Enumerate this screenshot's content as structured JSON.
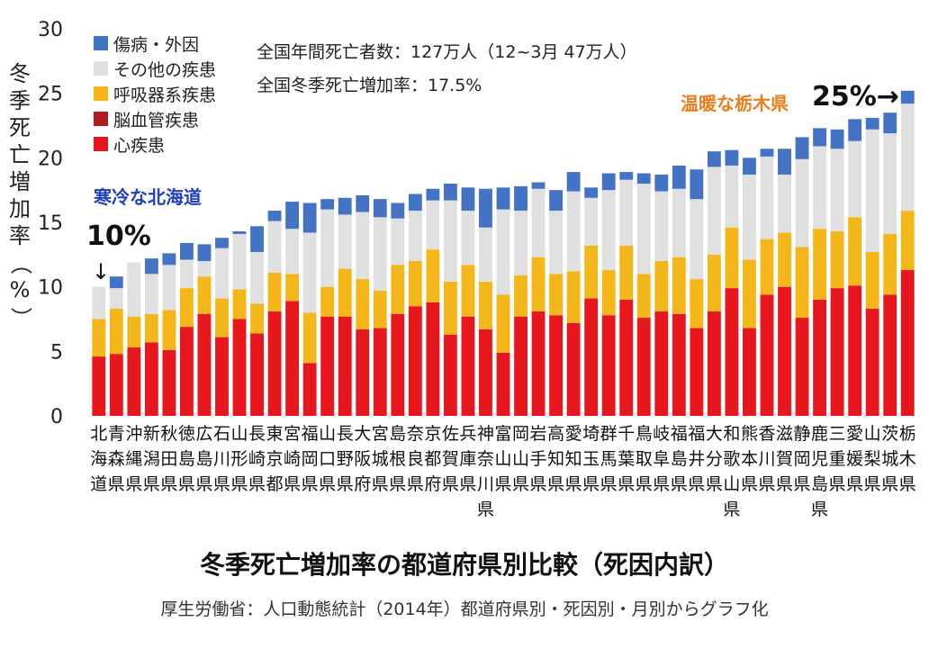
{
  "chart_data": {
    "type": "bar",
    "stacked": true,
    "title": "冬季死亡増加率の都道府県別比較（死因内訳）",
    "source": "厚生労働省：人口動態統計（2014年）都道府県別・死因別・月別からグラフ化",
    "ylabel": "冬季死亡増加率（%）",
    "ylim": [
      0,
      30
    ],
    "yticks": [
      "0",
      "5",
      "10",
      "15",
      "20",
      "25",
      "30"
    ],
    "grid": false,
    "legend_position": "top-left",
    "categories": [
      "北海道",
      "青森県",
      "沖縄県",
      "新潟県",
      "秋田県",
      "徳島県",
      "広島県",
      "石川県",
      "山形県",
      "長崎県",
      "東京都",
      "宮崎県",
      "福岡県",
      "山口県",
      "長野県",
      "大阪府",
      "宮城県",
      "島根県",
      "奈良県",
      "京都府",
      "佐賀県",
      "兵庫県",
      "神奈川県",
      "富山県",
      "岡山県",
      "岩手県",
      "高知県",
      "愛知県",
      "埼玉県",
      "群馬県",
      "千葉県",
      "鳥取県",
      "岐阜県",
      "福島県",
      "福井県",
      "大分県",
      "和歌山県",
      "熊本県",
      "香川県",
      "滋賀県",
      "静岡県",
      "鹿児島県",
      "三重県",
      "愛媛県",
      "山梨県",
      "茨城県",
      "栃木県"
    ],
    "series": [
      {
        "name": "心疾患",
        "color": "#e8171d",
        "values": [
          4.6,
          4.8,
          5.3,
          5.7,
          5.1,
          6.9,
          7.9,
          6.1,
          7.5,
          6.4,
          8.1,
          8.9,
          4.1,
          7.7,
          7.7,
          6.7,
          6.8,
          7.9,
          8.5,
          8.8,
          6.3,
          7.7,
          6.7,
          4.9,
          7.7,
          8.1,
          7.8,
          7.2,
          9.1,
          7.8,
          9.0,
          7.6,
          8.1,
          7.9,
          6.8,
          8.1,
          9.9,
          6.8,
          9.4,
          10.0,
          7.6,
          9.0,
          9.9,
          10.1,
          8.3,
          9.4,
          11.3
        ]
      },
      {
        "name": "脳血管疾患",
        "color": "#b01e23",
        "values": [
          0,
          0,
          0,
          0,
          0,
          0,
          0,
          0,
          0,
          0,
          0,
          0,
          0,
          0,
          0,
          0,
          0,
          0,
          0,
          0,
          0,
          0,
          0,
          0,
          0,
          0,
          0,
          0,
          0,
          0,
          0,
          0,
          0,
          0,
          0,
          0,
          0,
          0,
          0,
          0,
          0,
          0,
          0,
          0,
          0,
          0,
          0
        ]
      },
      {
        "name": "呼吸器系疾患",
        "color": "#f5b61a",
        "values": [
          2.9,
          3.5,
          2.4,
          2.2,
          3.1,
          3.0,
          2.9,
          3.0,
          2.3,
          2.3,
          3.0,
          2.1,
          3.9,
          2.3,
          3.7,
          3.9,
          2.9,
          3.8,
          3.5,
          4.1,
          4.1,
          4.0,
          3.7,
          4.5,
          3.2,
          4.2,
          3.2,
          4.0,
          4.1,
          3.5,
          4.2,
          3.4,
          3.9,
          4.4,
          3.8,
          4.4,
          4.7,
          5.3,
          4.3,
          4.2,
          5.5,
          5.5,
          4.4,
          5.3,
          4.4,
          4.7,
          4.6
        ]
      },
      {
        "name": "その他の疾患",
        "color": "#e0e0e0",
        "values": [
          2.5,
          1.6,
          4.2,
          3.1,
          3.5,
          2.2,
          1.2,
          3.9,
          4.3,
          4.0,
          4.0,
          3.5,
          6.2,
          6.0,
          4.2,
          5.2,
          5.7,
          3.6,
          3.9,
          3.8,
          6.3,
          4.2,
          4.2,
          6.6,
          5.0,
          5.3,
          4.9,
          6.2,
          3.7,
          6.2,
          5.1,
          7.0,
          5.4,
          5.3,
          6.2,
          6.8,
          4.8,
          6.6,
          6.4,
          4.5,
          6.8,
          6.4,
          6.4,
          5.9,
          9.5,
          7.8,
          8.3
        ]
      },
      {
        "name": "傷病・外因",
        "color": "#4472c4",
        "values": [
          0,
          0.9,
          0,
          1.2,
          0.9,
          1.3,
          1.3,
          0.8,
          0.2,
          2.0,
          0.8,
          2.1,
          2.3,
          0.8,
          1.3,
          1.3,
          1.4,
          1.2,
          1.3,
          0.9,
          1.3,
          1.8,
          3.0,
          1.7,
          1.9,
          0.5,
          1.6,
          1.5,
          0.8,
          1.3,
          0.6,
          0.8,
          1.3,
          1.8,
          2.3,
          1.2,
          1.2,
          1.3,
          0.6,
          2.0,
          1.7,
          1.4,
          1.5,
          1.7,
          0.9,
          1.6,
          1.0
        ]
      }
    ]
  },
  "legend": {
    "items": [
      {
        "label": "傷病・外因",
        "color": "#4472c4"
      },
      {
        "label": "その他の疾患",
        "color": "#e0e0e0"
      },
      {
        "label": "呼吸器系疾患",
        "color": "#f5b61a"
      },
      {
        "label": "脳血管疾患",
        "color": "#b01e23"
      },
      {
        "label": "心疾患",
        "color": "#e8171d"
      }
    ]
  },
  "info": {
    "line1": "全国年間死亡者数：127万人（12~3月 47万人）",
    "line2": "全国冬季死亡増加率：17.5%"
  },
  "callouts": {
    "hokkaido_label": "寒冷な北海道",
    "hokkaido_color": "#1f3fbf",
    "hokkaido_value": "10%",
    "hokkaido_arrow": "↓",
    "tochigi_label": "温暖な栃木県",
    "tochigi_color": "#ee7d1a",
    "tochigi_value": "25%→"
  }
}
